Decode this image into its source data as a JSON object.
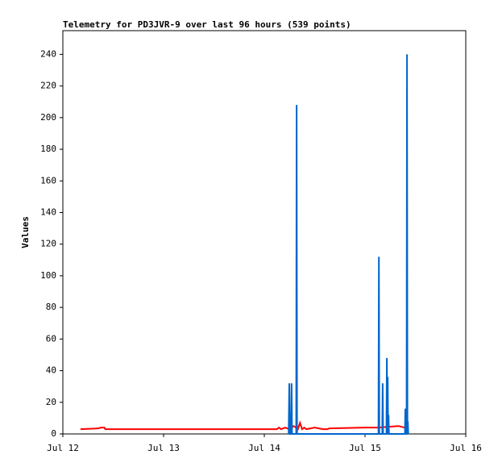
{
  "chart_data": {
    "type": "line",
    "title": "Telemetry for PD3JVR-9 over last 96 hours (539 points)",
    "ylabel": "Values",
    "xlim": [
      0,
      96
    ],
    "xticks": [
      {
        "value": 0,
        "label": "Jul 12"
      },
      {
        "value": 24,
        "label": "Jul 13"
      },
      {
        "value": 48,
        "label": "Jul 14"
      },
      {
        "value": 72,
        "label": "Jul 15"
      },
      {
        "value": 96,
        "label": "Jul 16"
      }
    ],
    "ylim": [
      0,
      255
    ],
    "yticks": [
      0,
      20,
      40,
      60,
      80,
      100,
      120,
      140,
      160,
      180,
      200,
      220,
      240
    ],
    "grid": false,
    "series": [
      {
        "name": "red",
        "color": "#ff0000",
        "x": [
          4.2,
          8.5,
          9.0,
          9.9,
          10.1,
          51.0,
          51.5,
          52,
          53,
          54,
          55,
          56,
          56.5,
          57,
          57.5,
          58,
          60,
          62,
          63,
          63.5,
          72,
          75,
          80,
          81.5
        ],
        "values": [
          3,
          3.5,
          4,
          4,
          3,
          3,
          4,
          3,
          4,
          3,
          5,
          3,
          7,
          3,
          4,
          3,
          4,
          3,
          3,
          3.5,
          4,
          4,
          5,
          4
        ]
      },
      {
        "name": "blue",
        "color": "#0066cc",
        "x": [
          53.8,
          53.95,
          54.1,
          54.4,
          54.5,
          54.6,
          55.6,
          55.7,
          55.8,
          75.2,
          75.3,
          75.4,
          76.1,
          76.2,
          76.3,
          77.1,
          77.2,
          77.3,
          77.4,
          77.5,
          77.6,
          77.7,
          81.5,
          81.6,
          81.7,
          81.9,
          82.0,
          82.1,
          82.2,
          82.3
        ],
        "values": [
          0,
          32,
          0,
          0,
          32,
          0,
          0,
          208,
          0,
          0,
          112,
          0,
          0,
          32,
          0,
          0,
          48,
          0,
          36,
          0,
          12,
          0,
          0,
          16,
          0,
          0,
          240,
          0,
          8,
          0
        ]
      }
    ]
  }
}
